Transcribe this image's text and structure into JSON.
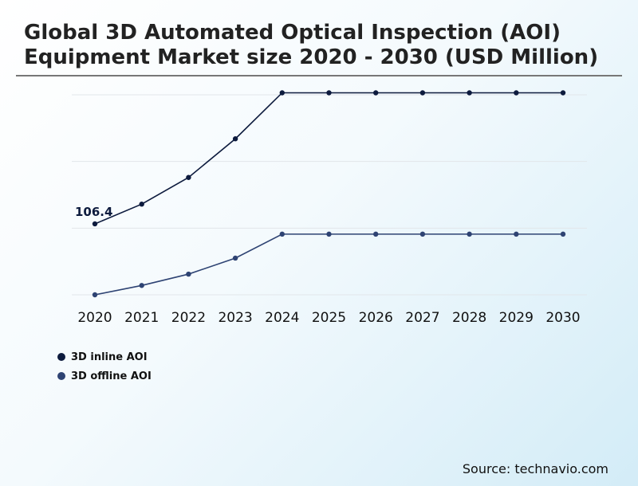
{
  "chart_data": {
    "type": "line",
    "title": "Global 3D Automated Optical Inspection (AOI) Equipment Market size 2020 - 2030 (USD Million)",
    "xlabel": "",
    "ylabel": "",
    "categories": [
      "2020",
      "2021",
      "2022",
      "2023",
      "2024",
      "2025",
      "2026",
      "2027",
      "2028",
      "2029",
      "2030"
    ],
    "ylim": [
      0,
      300
    ],
    "grid": true,
    "legend_position": "bottom-left",
    "series": [
      {
        "name": "3D inline AOI",
        "color": "#0d1b3e",
        "values": [
          106.4,
          136,
          176,
          234,
          303,
          303,
          303,
          303,
          303,
          303,
          303
        ]
      },
      {
        "name": "3D offline AOI",
        "color": "#2e4373",
        "values": [
          0,
          14,
          31,
          55,
          91,
          91,
          91,
          91,
          91,
          91,
          91
        ]
      }
    ],
    "annotations": [
      {
        "series": 0,
        "index": 0,
        "text": "106.4"
      }
    ]
  },
  "source": "Source: technavio.com"
}
